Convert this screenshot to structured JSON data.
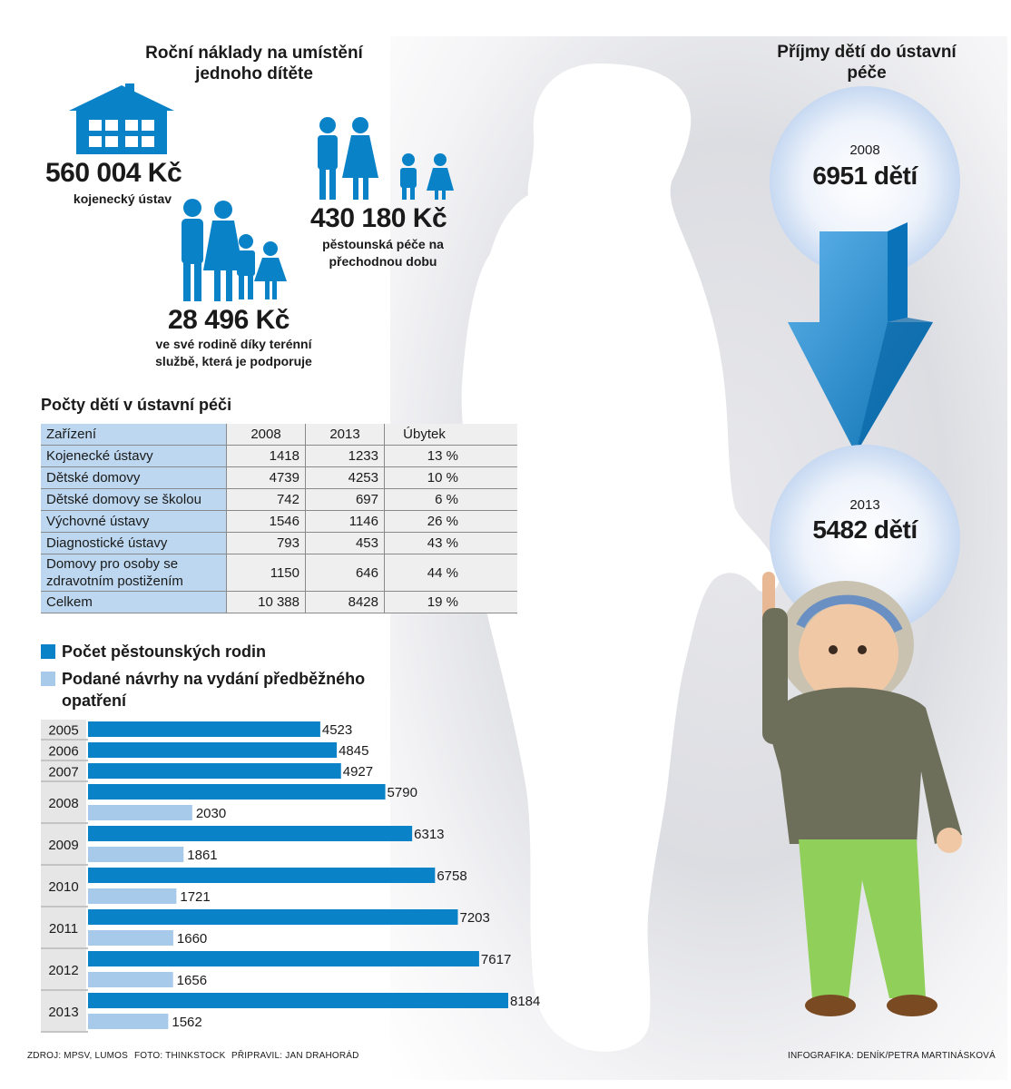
{
  "costs": {
    "title": "Roční náklady na umístění jednoho dítěte",
    "items": [
      {
        "value": "560 004 Kč",
        "label": "kojenecký ústav"
      },
      {
        "value": "430 180 Kč",
        "label": "pěstounská péče na přechodnou dobu"
      },
      {
        "value": "28 496 Kč",
        "label": "ve své rodině díky terénní službě, která je podporuje"
      }
    ]
  },
  "intake": {
    "title": "Příjmy dětí do ústavní péče",
    "year_a": "2008",
    "value_a": "6951 dětí",
    "year_b": "2013",
    "value_b": "5482 dětí"
  },
  "table": {
    "title": "Počty dětí v ústavní péči",
    "headers": [
      "Zařízení",
      "2008",
      "2013",
      "Úbytek"
    ],
    "rows": [
      [
        "Kojenecké ústavy",
        "1418",
        "1233",
        "13 %"
      ],
      [
        "Dětské domovy",
        "4739",
        "4253",
        "10 %"
      ],
      [
        "Dětské domovy se školou",
        "742",
        "697",
        "6 %"
      ],
      [
        "Výchovné ústavy",
        "1546",
        "1146",
        "26 %"
      ],
      [
        "Diagnostické ústavy",
        "793",
        "453",
        "43 %"
      ],
      [
        "Domovy pro osoby se zdravotním postižením",
        "1150",
        "646",
        "44 %"
      ],
      [
        "Celkem",
        "10 388",
        "8428",
        "19 %"
      ]
    ]
  },
  "chart_data": {
    "type": "bar",
    "orientation": "horizontal",
    "categories": [
      "2005",
      "2006",
      "2007",
      "2008",
      "2009",
      "2010",
      "2011",
      "2012",
      "2013"
    ],
    "series": [
      {
        "name": "Počet pěstounských rodin",
        "color": "#0a82c8",
        "values": [
          4523,
          4845,
          4927,
          5790,
          6313,
          6758,
          7203,
          7617,
          8184
        ]
      },
      {
        "name": "Podané návrhy na vydání předběžného opatření",
        "color": "#a7c9ea",
        "values": [
          null,
          null,
          null,
          2030,
          1861,
          1721,
          1660,
          1656,
          1562
        ]
      }
    ],
    "title": "",
    "xlabel": "",
    "ylabel": "",
    "grid": false,
    "legend": "top-left"
  },
  "footer": {
    "source": "ZDROJ: MPSV, LUMOS",
    "photo": "FOTO: THINKSTOCK",
    "prepared": "PŘIPRAVIL: JAN DRAHORÁD",
    "credit": "INFOGRAFIKA: DENÍK/PETRA MARTINÁSKOVÁ"
  },
  "colors": {
    "accent": "#0a82c8",
    "light": "#a7c9ea",
    "table_label_bg": "#bcd7ef"
  }
}
